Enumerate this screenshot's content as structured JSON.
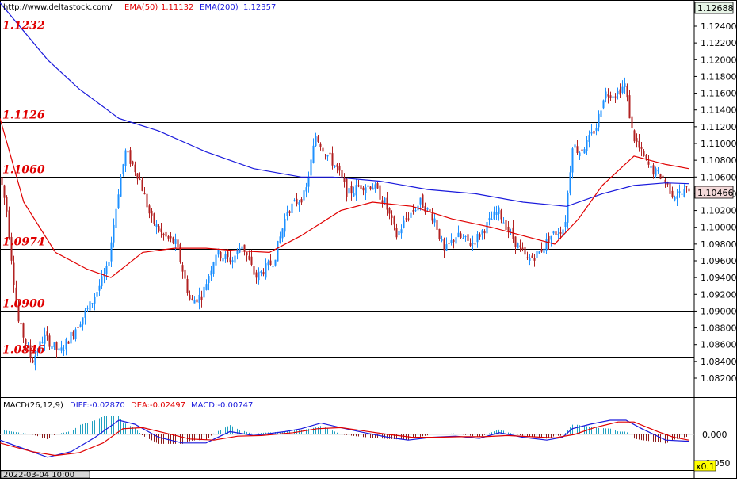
{
  "header": {
    "source": "http://www.deltastock.com/",
    "ema50_label": "EMA(50)",
    "ema50_value": "1.11132",
    "ema200_label": "EMA(200)",
    "ema200_value": "1.12357"
  },
  "colors": {
    "up": "#1e90ff",
    "down": "#b22222",
    "ema50": "#e00000",
    "ema200": "#1a1adc",
    "level_text": "#e00000",
    "diff": "#1a1adc",
    "dea": "#e00000"
  },
  "price_axis": {
    "ticks": [
      "1.12400",
      "1.12200",
      "1.12000",
      "1.11800",
      "1.11600",
      "1.11400",
      "1.11200",
      "1.11000",
      "1.10800",
      "1.10600",
      "1.10400",
      "1.10200",
      "1.10000",
      "1.09800",
      "1.09600",
      "1.09400",
      "1.09200",
      "1.09000",
      "1.08800",
      "1.08600",
      "1.08400",
      "1.08200"
    ],
    "top_value": "1.12688",
    "current_value": "1.10466"
  },
  "levels": [
    "1.1232",
    "1.1126",
    "1.1060",
    "1.0974",
    "1.0900",
    "1.0846"
  ],
  "macd": {
    "label": "MACD(26,12,9)",
    "diff_label": "DIFF:-0.02870",
    "dea_label": "DEA:-0.02497",
    "macd_label": "MACD:-0.00747",
    "zero_tick": "0.000",
    "low_tick": "-0.050"
  },
  "footer": {
    "date": "2022-03-04 10:00",
    "zoom": "x0.1"
  },
  "chart_data": {
    "type": "candlestick",
    "ylim": [
      1.0806,
      1.127
    ],
    "levels": [
      1.1232,
      1.1126,
      1.106,
      1.0974,
      1.09,
      1.0846
    ],
    "close_path": [
      [
        0,
        1.106
      ],
      [
        8,
        1.102
      ],
      [
        22,
        1.089
      ],
      [
        40,
        1.084
      ],
      [
        55,
        1.087
      ],
      [
        75,
        1.085
      ],
      [
        95,
        1.088
      ],
      [
        115,
        1.091
      ],
      [
        135,
        1.095
      ],
      [
        150,
        1.105
      ],
      [
        158,
        1.109
      ],
      [
        175,
        1.106
      ],
      [
        190,
        1.101
      ],
      [
        205,
        1.099
      ],
      [
        222,
        1.098
      ],
      [
        240,
        1.091
      ],
      [
        255,
        1.092
      ],
      [
        272,
        1.097
      ],
      [
        292,
        1.096
      ],
      [
        305,
        1.098
      ],
      [
        322,
        1.094
      ],
      [
        345,
        1.096
      ],
      [
        362,
        1.102
      ],
      [
        385,
        1.104
      ],
      [
        398,
        1.111
      ],
      [
        410,
        1.109
      ],
      [
        425,
        1.107
      ],
      [
        438,
        1.104
      ],
      [
        455,
        1.105
      ],
      [
        470,
        1.105
      ],
      [
        485,
        1.103
      ],
      [
        500,
        1.099
      ],
      [
        512,
        1.101
      ],
      [
        530,
        1.103
      ],
      [
        548,
        1.101
      ],
      [
        560,
        1.097
      ],
      [
        575,
        1.099
      ],
      [
        595,
        1.098
      ],
      [
        612,
        1.1
      ],
      [
        628,
        1.102
      ],
      [
        645,
        1.099
      ],
      [
        665,
        1.096
      ],
      [
        680,
        1.097
      ],
      [
        695,
        1.099
      ],
      [
        712,
        1.1
      ],
      [
        722,
        1.11
      ],
      [
        730,
        1.109
      ],
      [
        740,
        1.11
      ],
      [
        752,
        1.112
      ],
      [
        762,
        1.116
      ],
      [
        778,
        1.116
      ],
      [
        788,
        1.117
      ],
      [
        798,
        1.111
      ],
      [
        808,
        1.109
      ],
      [
        820,
        1.107
      ],
      [
        835,
        1.106
      ],
      [
        848,
        1.104
      ],
      [
        860,
        1.104
      ],
      [
        869,
        1.1047
      ]
    ],
    "ema50": [
      [
        0,
        1.113
      ],
      [
        30,
        1.103
      ],
      [
        70,
        1.097
      ],
      [
        110,
        1.095
      ],
      [
        140,
        1.094
      ],
      [
        180,
        1.097
      ],
      [
        220,
        1.0975
      ],
      [
        260,
        1.0975
      ],
      [
        300,
        1.0972
      ],
      [
        340,
        1.097
      ],
      [
        380,
        1.099
      ],
      [
        430,
        1.102
      ],
      [
        470,
        1.103
      ],
      [
        520,
        1.1025
      ],
      [
        570,
        1.101
      ],
      [
        620,
        1.1
      ],
      [
        660,
        1.099
      ],
      [
        700,
        1.098
      ],
      [
        730,
        1.101
      ],
      [
        760,
        1.105
      ],
      [
        800,
        1.1085
      ],
      [
        840,
        1.1075
      ],
      [
        869,
        1.107
      ]
    ],
    "ema200": [
      [
        0,
        1.1268
      ],
      [
        60,
        1.12
      ],
      [
        100,
        1.1165
      ],
      [
        150,
        1.113
      ],
      [
        200,
        1.1115
      ],
      [
        260,
        1.109
      ],
      [
        320,
        1.107
      ],
      [
        380,
        1.106
      ],
      [
        420,
        1.106
      ],
      [
        480,
        1.1055
      ],
      [
        540,
        1.1045
      ],
      [
        600,
        1.104
      ],
      [
        660,
        1.103
      ],
      [
        715,
        1.1025
      ],
      [
        760,
        1.104
      ],
      [
        800,
        1.105
      ],
      [
        840,
        1.1053
      ],
      [
        869,
        1.1052
      ]
    ],
    "macd_diff": [
      [
        0,
        -0.01
      ],
      [
        30,
        -0.025
      ],
      [
        60,
        -0.04
      ],
      [
        90,
        -0.03
      ],
      [
        120,
        -0.005
      ],
      [
        150,
        0.025
      ],
      [
        170,
        0.018
      ],
      [
        200,
        -0.005
      ],
      [
        230,
        -0.015
      ],
      [
        260,
        -0.015
      ],
      [
        290,
        0.005
      ],
      [
        320,
        -0.002
      ],
      [
        360,
        0.005
      ],
      [
        380,
        0.01
      ],
      [
        405,
        0.02
      ],
      [
        430,
        0.012
      ],
      [
        460,
        0.003
      ],
      [
        490,
        -0.005
      ],
      [
        515,
        -0.01
      ],
      [
        545,
        -0.005
      ],
      [
        575,
        -0.003
      ],
      [
        605,
        -0.007
      ],
      [
        630,
        0.003
      ],
      [
        660,
        -0.005
      ],
      [
        690,
        -0.01
      ],
      [
        710,
        -0.005
      ],
      [
        722,
        0.01
      ],
      [
        745,
        0.018
      ],
      [
        770,
        0.025
      ],
      [
        790,
        0.025
      ],
      [
        810,
        0.01
      ],
      [
        840,
        -0.01
      ],
      [
        869,
        -0.012
      ]
    ],
    "macd_dea": [
      [
        0,
        -0.015
      ],
      [
        40,
        -0.03
      ],
      [
        70,
        -0.037
      ],
      [
        100,
        -0.032
      ],
      [
        130,
        -0.015
      ],
      [
        155,
        0.01
      ],
      [
        180,
        0.012
      ],
      [
        210,
        0.002
      ],
      [
        240,
        -0.008
      ],
      [
        270,
        -0.01
      ],
      [
        300,
        -0.003
      ],
      [
        330,
        -0.002
      ],
      [
        370,
        0.003
      ],
      [
        400,
        0.01
      ],
      [
        430,
        0.012
      ],
      [
        460,
        0.006
      ],
      [
        490,
        0.0
      ],
      [
        520,
        -0.005
      ],
      [
        550,
        -0.005
      ],
      [
        580,
        -0.004
      ],
      [
        610,
        -0.004
      ],
      [
        640,
        -0.002
      ],
      [
        670,
        -0.004
      ],
      [
        700,
        -0.006
      ],
      [
        725,
        0.0
      ],
      [
        750,
        0.012
      ],
      [
        780,
        0.022
      ],
      [
        800,
        0.022
      ],
      [
        830,
        0.005
      ],
      [
        850,
        -0.005
      ],
      [
        869,
        -0.01
      ]
    ]
  }
}
